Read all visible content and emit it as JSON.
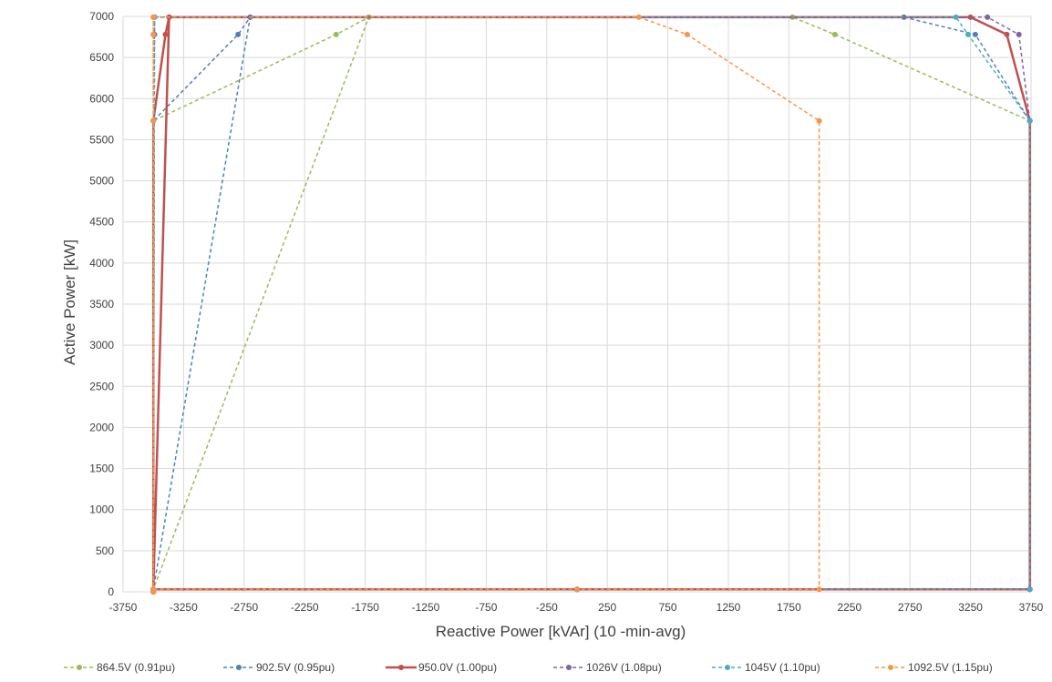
{
  "chart_data": {
    "type": "scatter",
    "xlabel": "Reactive Power [kVAr] (10 -min-avg)",
    "ylabel": "Active Power [kW]",
    "xlim": [
      -3750,
      3750
    ],
    "ylim": [
      0,
      7000
    ],
    "x_ticks": [
      -3750,
      -3250,
      -2750,
      -2250,
      -1750,
      -1250,
      -750,
      -250,
      250,
      750,
      1250,
      1750,
      2250,
      2750,
      3250,
      3750
    ],
    "y_ticks": [
      0,
      500,
      1000,
      1500,
      2000,
      2500,
      3000,
      3500,
      4000,
      4500,
      5000,
      5500,
      6000,
      6500,
      7000
    ],
    "grid": true,
    "legend_position": "bottom",
    "series": [
      {
        "name": "864.5V (0.91pu)",
        "color": "#9bbb59",
        "dash": true,
        "x": [
          -3500,
          -3500,
          -1720,
          -1990,
          -3500,
          -3500,
          0,
          3740,
          3740,
          2130,
          1780,
          -1720
        ],
        "y": [
          0,
          30,
          6990,
          6780,
          5730,
          30,
          30,
          30,
          5730,
          6780,
          6990,
          6990
        ]
      },
      {
        "name": "902.5V (0.95pu)",
        "color": "#4f81bd",
        "dash": true,
        "x": [
          -3500,
          -3500,
          -2700,
          -2800,
          -3500,
          -3500,
          0,
          3740,
          3740,
          3290,
          2700,
          -2700
        ],
        "y": [
          0,
          30,
          6990,
          6780,
          5730,
          30,
          30,
          30,
          5730,
          6780,
          6990,
          6990
        ]
      },
      {
        "name": "950.0V (1.00pu)",
        "color": "#c0504d",
        "dash": false,
        "x": [
          -3500,
          -3500,
          -3370,
          -3400,
          -3500,
          -3500,
          0,
          3740,
          3740,
          3550,
          3250,
          -3370
        ],
        "y": [
          0,
          30,
          6990,
          6780,
          5730,
          30,
          30,
          30,
          5730,
          6780,
          6990,
          6990
        ]
      },
      {
        "name": "1026V (1.08pu)",
        "color": "#8064a2",
        "dash": true,
        "x": [
          -3500,
          -3500,
          -3490,
          -3490,
          -3500,
          -3500,
          0,
          3740,
          3740,
          3650,
          3390,
          -3490
        ],
        "y": [
          0,
          30,
          6990,
          6780,
          5730,
          30,
          30,
          30,
          5730,
          6780,
          6990,
          6990
        ]
      },
      {
        "name": "1045V (1.10pu)",
        "color": "#4bacc6",
        "dash": true,
        "x": [
          -3500,
          -3500,
          -3490,
          -3500,
          -3500,
          -3500,
          0,
          3740,
          3740,
          3230,
          3130,
          -3490
        ],
        "y": [
          0,
          30,
          6990,
          6780,
          5730,
          30,
          30,
          30,
          5730,
          6780,
          6990,
          6990
        ]
      },
      {
        "name": "1092.5V (1.15pu)",
        "color": "#f79646",
        "dash": true,
        "x": [
          -3500,
          -3500,
          -3500,
          -3500,
          -3500,
          -3500,
          0,
          2000,
          2000,
          910,
          510,
          -3500
        ],
        "y": [
          0,
          30,
          6990,
          6780,
          5730,
          30,
          30,
          30,
          5730,
          6780,
          6990,
          6990
        ]
      }
    ]
  }
}
